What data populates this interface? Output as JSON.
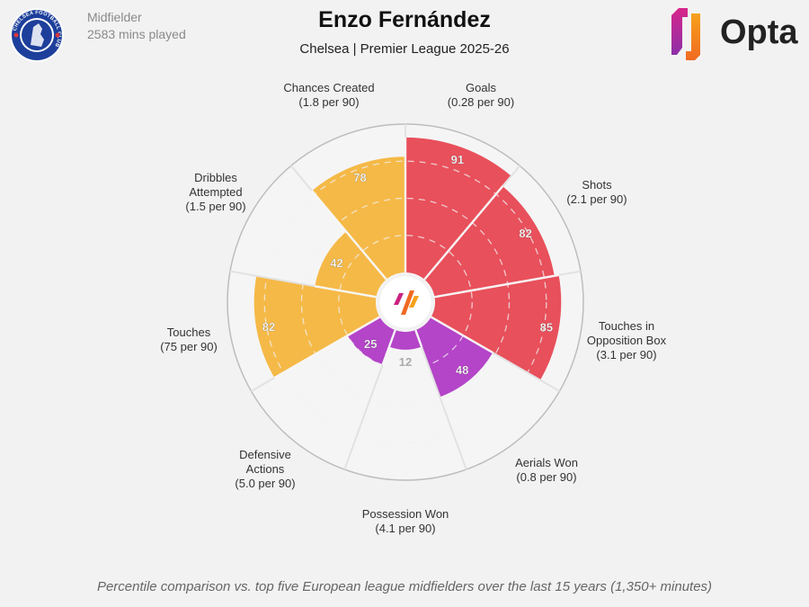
{
  "header": {
    "player_name": "Enzo Fernández",
    "subtitle": "Chelsea | Premier League 2025-26",
    "position": "Midfielder",
    "minutes": "2583 mins played",
    "club_logo_text": "CHELSEA FOOTBALL CLUB",
    "brand_logo_text": "Opta"
  },
  "footnote": "Percentile comparison vs. top five European league midfielders over the last 15 years (1,350+ minutes)",
  "chart_data": {
    "type": "pie",
    "subtype": "polar-area percentile chart",
    "rlim": [
      0,
      100
    ],
    "gridlines": [
      25,
      50,
      75
    ],
    "colors": {
      "attacking": "#E8505B",
      "possession": "#F5B947",
      "defending": "#B444C8",
      "empty": "#f5f5f5",
      "background": "#f2f2f2"
    },
    "categories": [
      {
        "name": "Goals",
        "per90": "(0.28 per 90)",
        "value": 91,
        "group": "attacking"
      },
      {
        "name": "Shots",
        "per90": "(2.1 per 90)",
        "value": 82,
        "group": "attacking"
      },
      {
        "name": "Touches in Opposition Box",
        "name_lines": [
          "Touches in",
          "Opposition Box"
        ],
        "per90": "(3.1 per 90)",
        "value": 85,
        "group": "attacking"
      },
      {
        "name": "Aerials Won",
        "per90": "(0.8 per 90)",
        "value": 48,
        "group": "defending"
      },
      {
        "name": "Possession Won",
        "per90": "(4.1 per 90)",
        "value": 12,
        "group": "defending"
      },
      {
        "name": "Defensive Actions",
        "name_lines": [
          "Defensive",
          "Actions"
        ],
        "per90": "(5.0 per 90)",
        "value": 25,
        "group": "defending"
      },
      {
        "name": "Touches",
        "per90": "(75 per 90)",
        "value": 82,
        "group": "possession"
      },
      {
        "name": "Dribbles Attempted",
        "name_lines": [
          "Dribbles",
          "Attempted"
        ],
        "per90": "(1.5 per 90)",
        "value": 42,
        "group": "possession"
      },
      {
        "name": "Chances Created",
        "per90": "(1.8 per 90)",
        "value": 78,
        "group": "possession"
      }
    ]
  }
}
